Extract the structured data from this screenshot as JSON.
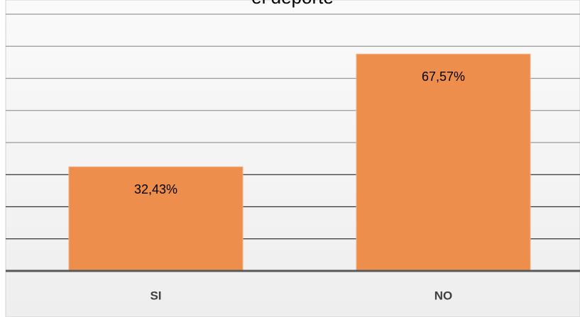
{
  "chart_data": {
    "type": "bar",
    "title": "el deporte",
    "categories": [
      "SI",
      "NO"
    ],
    "values": [
      32.43,
      67.57
    ],
    "value_labels": [
      "32,43%",
      "67,57%"
    ],
    "color": "#ed8e4d",
    "ylim": [
      0,
      80
    ],
    "yticks": [
      0,
      10,
      20,
      30,
      40,
      50,
      60,
      70,
      80
    ],
    "grid": true
  }
}
